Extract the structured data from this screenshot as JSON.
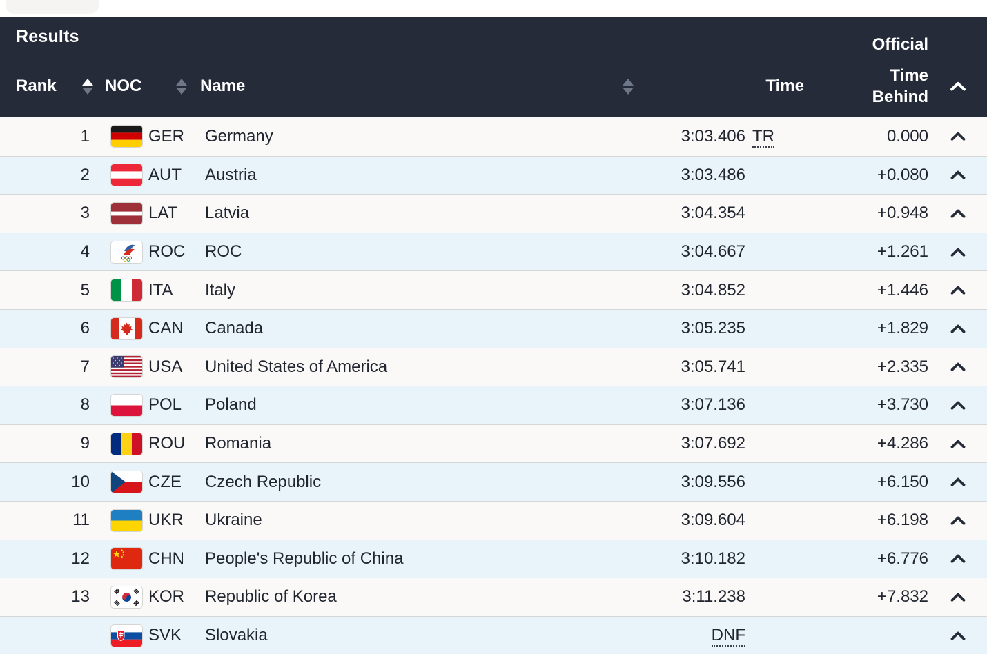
{
  "header": {
    "title": "Results",
    "status": "Official",
    "columns": {
      "rank": "Rank",
      "noc": "NOC",
      "name": "Name",
      "time": "Time",
      "time_behind": "Time Behind"
    },
    "sort_state": {
      "rank": "ascending",
      "noc": "none",
      "name": "none"
    }
  },
  "colors": {
    "header_bg": "#252b39",
    "row_odd_bg": "#faf9f7",
    "row_even_bg": "#e9f4fa",
    "separator": "#d6d6d6",
    "text_dark": "#20252f",
    "sort_active": "#ffffff",
    "sort_inactive": "#6e7787"
  },
  "icons": {
    "row_expand": "chevron-up-icon",
    "header_collapse": "chevron-up-icon",
    "sort": "sort-arrows-icon"
  },
  "rows": [
    {
      "rank": "1",
      "noc": "GER",
      "name": "Germany",
      "time": "3:03.406",
      "time_note": "TR",
      "behind": "0.000",
      "time_abbr": false
    },
    {
      "rank": "2",
      "noc": "AUT",
      "name": "Austria",
      "time": "3:03.486",
      "time_note": "",
      "behind": "+0.080",
      "time_abbr": false
    },
    {
      "rank": "3",
      "noc": "LAT",
      "name": "Latvia",
      "time": "3:04.354",
      "time_note": "",
      "behind": "+0.948",
      "time_abbr": false
    },
    {
      "rank": "4",
      "noc": "ROC",
      "name": "ROC",
      "time": "3:04.667",
      "time_note": "",
      "behind": "+1.261",
      "time_abbr": false
    },
    {
      "rank": "5",
      "noc": "ITA",
      "name": "Italy",
      "time": "3:04.852",
      "time_note": "",
      "behind": "+1.446",
      "time_abbr": false
    },
    {
      "rank": "6",
      "noc": "CAN",
      "name": "Canada",
      "time": "3:05.235",
      "time_note": "",
      "behind": "+1.829",
      "time_abbr": false
    },
    {
      "rank": "7",
      "noc": "USA",
      "name": "United States of America",
      "time": "3:05.741",
      "time_note": "",
      "behind": "+2.335",
      "time_abbr": false
    },
    {
      "rank": "8",
      "noc": "POL",
      "name": "Poland",
      "time": "3:07.136",
      "time_note": "",
      "behind": "+3.730",
      "time_abbr": false
    },
    {
      "rank": "9",
      "noc": "ROU",
      "name": "Romania",
      "time": "3:07.692",
      "time_note": "",
      "behind": "+4.286",
      "time_abbr": false
    },
    {
      "rank": "10",
      "noc": "CZE",
      "name": "Czech Republic",
      "time": "3:09.556",
      "time_note": "",
      "behind": "+6.150",
      "time_abbr": false
    },
    {
      "rank": "11",
      "noc": "UKR",
      "name": "Ukraine",
      "time": "3:09.604",
      "time_note": "",
      "behind": "+6.198",
      "time_abbr": false
    },
    {
      "rank": "12",
      "noc": "CHN",
      "name": "People's Republic of China",
      "time": "3:10.182",
      "time_note": "",
      "behind": "+6.776",
      "time_abbr": false
    },
    {
      "rank": "13",
      "noc": "KOR",
      "name": "Republic of Korea",
      "time": "3:11.238",
      "time_note": "",
      "behind": "+7.832",
      "time_abbr": false
    },
    {
      "rank": "",
      "noc": "SVK",
      "name": "Slovakia",
      "time": "DNF",
      "time_note": "",
      "behind": "",
      "time_abbr": true
    }
  ]
}
